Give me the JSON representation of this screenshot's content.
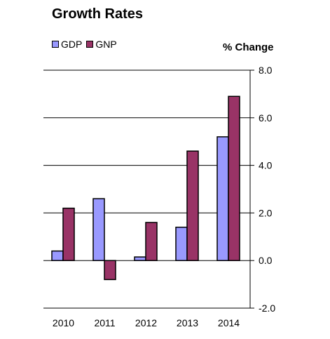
{
  "chart_data": {
    "type": "bar",
    "title": "Growth Rates",
    "ylabel": "% Change",
    "xlabel": "",
    "categories": [
      "2010",
      "2011",
      "2012",
      "2013",
      "2014"
    ],
    "series": [
      {
        "name": "GDP",
        "values": [
          0.4,
          2.6,
          0.15,
          1.4,
          5.2
        ],
        "color": "#9999ff"
      },
      {
        "name": "GNP",
        "values": [
          2.2,
          -0.8,
          1.6,
          4.6,
          6.9
        ],
        "color": "#993366"
      }
    ],
    "ylim": [
      -2.0,
      8.0
    ],
    "yticks": [
      "8.0",
      "6.0",
      "4.0",
      "2.0",
      "0.0",
      "-2.0"
    ],
    "ytick_values": [
      8,
      6,
      4,
      2,
      0,
      -2
    ],
    "grid": true,
    "legend_position": "top-left",
    "y_axis_position": "right"
  }
}
